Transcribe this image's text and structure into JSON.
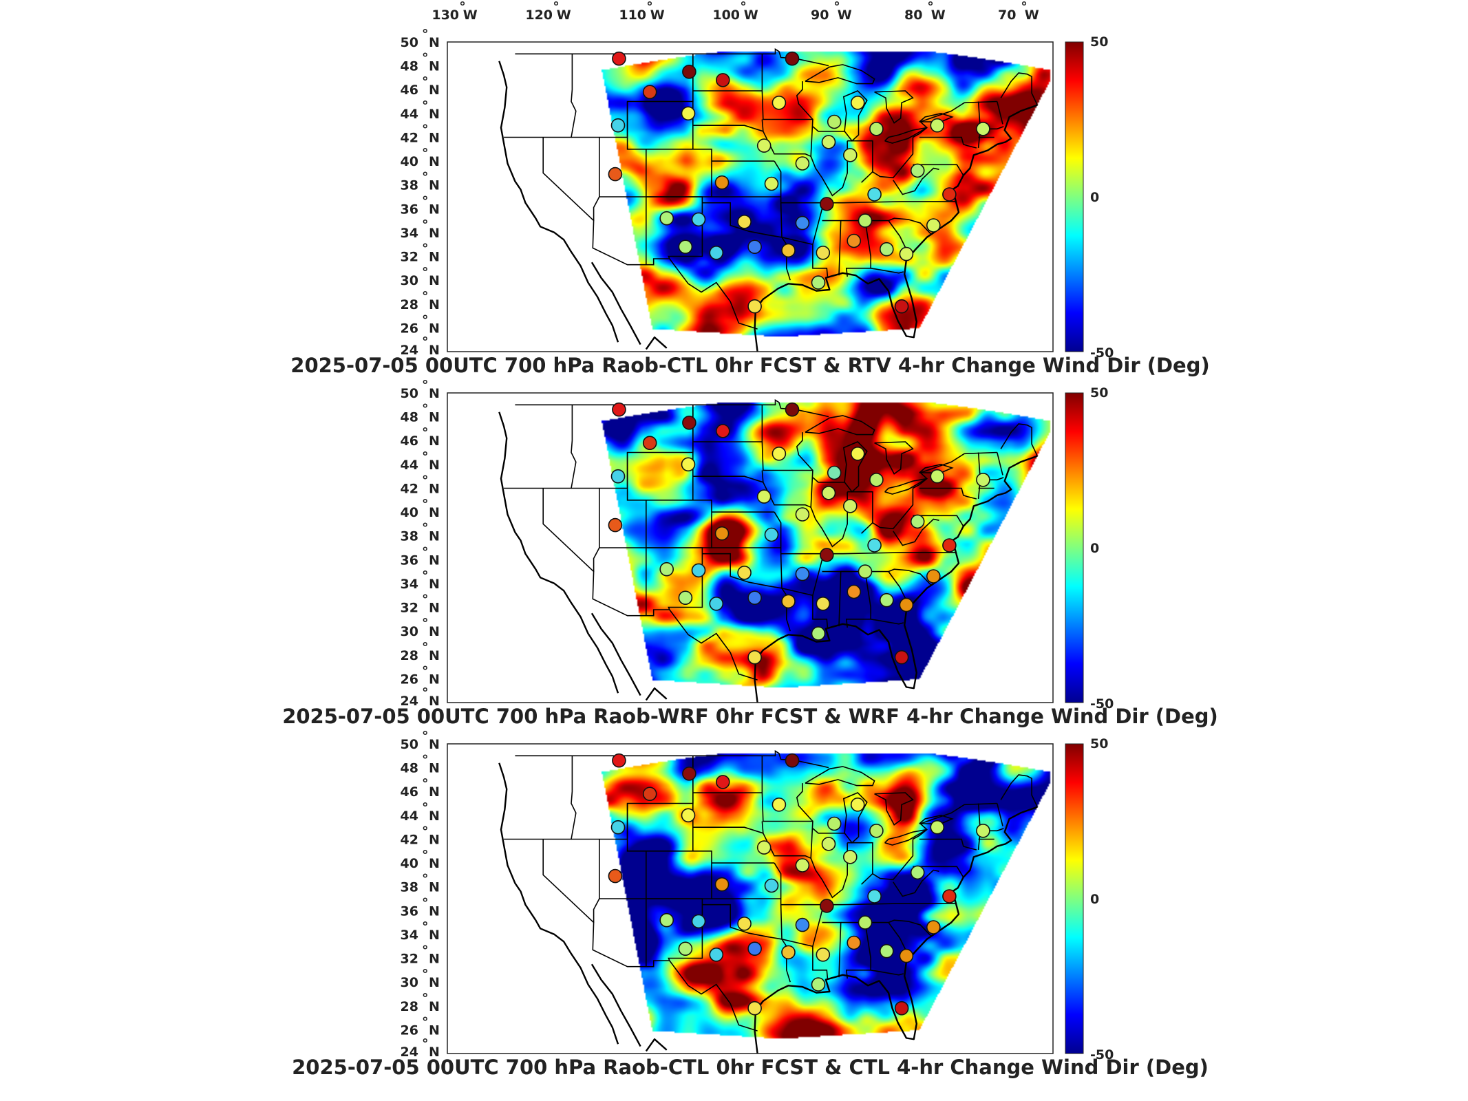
{
  "lon_labels": [
    "130",
    "120",
    "110",
    "100",
    "90",
    "80",
    "70"
  ],
  "lon_unit": "W",
  "lat_labels": [
    "50",
    "48",
    "46",
    "44",
    "42",
    "40",
    "38",
    "36",
    "34",
    "32",
    "30",
    "28",
    "26",
    "24"
  ],
  "lat_unit": "N",
  "degree_symbol": "°",
  "colorbar": {
    "max": "50",
    "mid": "0",
    "min": "-50",
    "colors": [
      "#00008f",
      "#0000ff",
      "#0080ff",
      "#00ffff",
      "#80ff80",
      "#ffff00",
      "#ff8000",
      "#ff0000",
      "#800000"
    ]
  },
  "panels": [
    {
      "title": "2025-07-05 00UTC 700 hPa Raob-CTL 0hr FCST & RTV 4-hr Change Wind Dir (Deg)"
    },
    {
      "title": "2025-07-05 00UTC 700 hPa Raob-WRF 0hr FCST & WRF 4-hr Change Wind Dir (Deg)"
    },
    {
      "title": "2025-07-05 00UTC 700 hPa Raob-CTL 0hr FCST & CTL 4-hr Change Wind Dir (Deg)"
    }
  ],
  "stations": [
    [
      -111.9,
      48.6
    ],
    [
      -104.4,
      47.5
    ],
    [
      -100.8,
      46.8
    ],
    [
      -93.4,
      48.6
    ],
    [
      -108.6,
      45.8
    ],
    [
      -104.5,
      44.0
    ],
    [
      -94.8,
      44.9
    ],
    [
      -86.4,
      44.9
    ],
    [
      -112.0,
      43.0
    ],
    [
      -88.9,
      43.3
    ],
    [
      -84.4,
      42.7
    ],
    [
      -77.9,
      43.0
    ],
    [
      -73.0,
      42.7
    ],
    [
      -89.5,
      41.6
    ],
    [
      -96.4,
      41.3
    ],
    [
      -87.2,
      40.5
    ],
    [
      -92.3,
      39.8
    ],
    [
      -80.0,
      39.2
    ],
    [
      -112.3,
      38.9
    ],
    [
      -100.9,
      38.2
    ],
    [
      -95.6,
      38.1
    ],
    [
      -84.6,
      37.2
    ],
    [
      -76.6,
      37.2
    ],
    [
      -89.7,
      36.4
    ],
    [
      -106.8,
      35.2
    ],
    [
      -103.4,
      35.1
    ],
    [
      -98.5,
      34.9
    ],
    [
      -92.3,
      34.8
    ],
    [
      -85.6,
      35.0
    ],
    [
      -78.3,
      34.6
    ],
    [
      -104.8,
      32.8
    ],
    [
      -101.5,
      32.3
    ],
    [
      -97.4,
      32.8
    ],
    [
      -93.8,
      32.5
    ],
    [
      -90.1,
      32.3
    ],
    [
      -86.8,
      33.3
    ],
    [
      -83.3,
      32.6
    ],
    [
      -81.2,
      32.2
    ],
    [
      -90.6,
      29.8
    ],
    [
      -97.4,
      27.8
    ],
    [
      -81.7,
      27.8
    ]
  ],
  "station_colors": [
    [
      "#e01818",
      "#7a0a0a",
      "#c81212",
      "#7a0a0a",
      "#d93a14",
      "#f5f54a",
      "#f5f54a",
      "#f5f54a",
      "#46d2e8",
      "#b8f06a",
      "#b8f06a",
      "#c8f568",
      "#c8f568",
      "#d0f268",
      "#d8f560",
      "#d0f268",
      "#d0f268",
      "#aef27a",
      "#e85a1a",
      "#e8900e",
      "#d8f560",
      "#50dce8",
      "#e02a10",
      "#8a0c0c",
      "#aef27a",
      "#46d2e8",
      "#f5e04a",
      "#3a8af0",
      "#b8f06a",
      "#d8f560",
      "#aef27a",
      "#46d2e8",
      "#3a7af0",
      "#f0c030",
      "#f0e050",
      "#f09020",
      "#aef27a",
      "#d8f560",
      "#aef27a",
      "#f5e04a",
      "#c81212"
    ],
    [
      "#e01818",
      "#8a0c0c",
      "#e01818",
      "#7a0a0a",
      "#d93a14",
      "#f5f54a",
      "#f5f54a",
      "#f5f54a",
      "#46d2e8",
      "#7ae8b0",
      "#b8f06a",
      "#c8f568",
      "#c8f568",
      "#d0f268",
      "#d8f560",
      "#d0f268",
      "#d0f268",
      "#aef27a",
      "#e85a1a",
      "#e8900e",
      "#46d2e8",
      "#50dce8",
      "#e02a10",
      "#8a0c0c",
      "#aef27a",
      "#46d2e8",
      "#f5e04a",
      "#3a8af0",
      "#b8f06a",
      "#e8900e",
      "#aef27a",
      "#46d2e8",
      "#3a7af0",
      "#f0c030",
      "#f0e050",
      "#f09020",
      "#aef27a",
      "#e8900e",
      "#aef27a",
      "#f5e04a",
      "#c81212"
    ],
    [
      "#e01818",
      "#8a0c0c",
      "#e01818",
      "#7a0a0a",
      "#d93a14",
      "#f5f54a",
      "#f5f54a",
      "#f5f54a",
      "#46d2e8",
      "#b8f06a",
      "#b8f06a",
      "#c8f568",
      "#c8f568",
      "#d0f268",
      "#d8f560",
      "#d0f268",
      "#d0f268",
      "#aef27a",
      "#e85a1a",
      "#e8900e",
      "#46d2e8",
      "#50dce8",
      "#e02a10",
      "#8a0c0c",
      "#aef27a",
      "#46d2e8",
      "#f5e04a",
      "#3a8af0",
      "#b8f06a",
      "#e8900e",
      "#aef27a",
      "#46d2e8",
      "#3a7af0",
      "#f0c030",
      "#f0e050",
      "#f09020",
      "#aef27a",
      "#e8900e",
      "#aef27a",
      "#f5e04a",
      "#c81212"
    ]
  ]
}
